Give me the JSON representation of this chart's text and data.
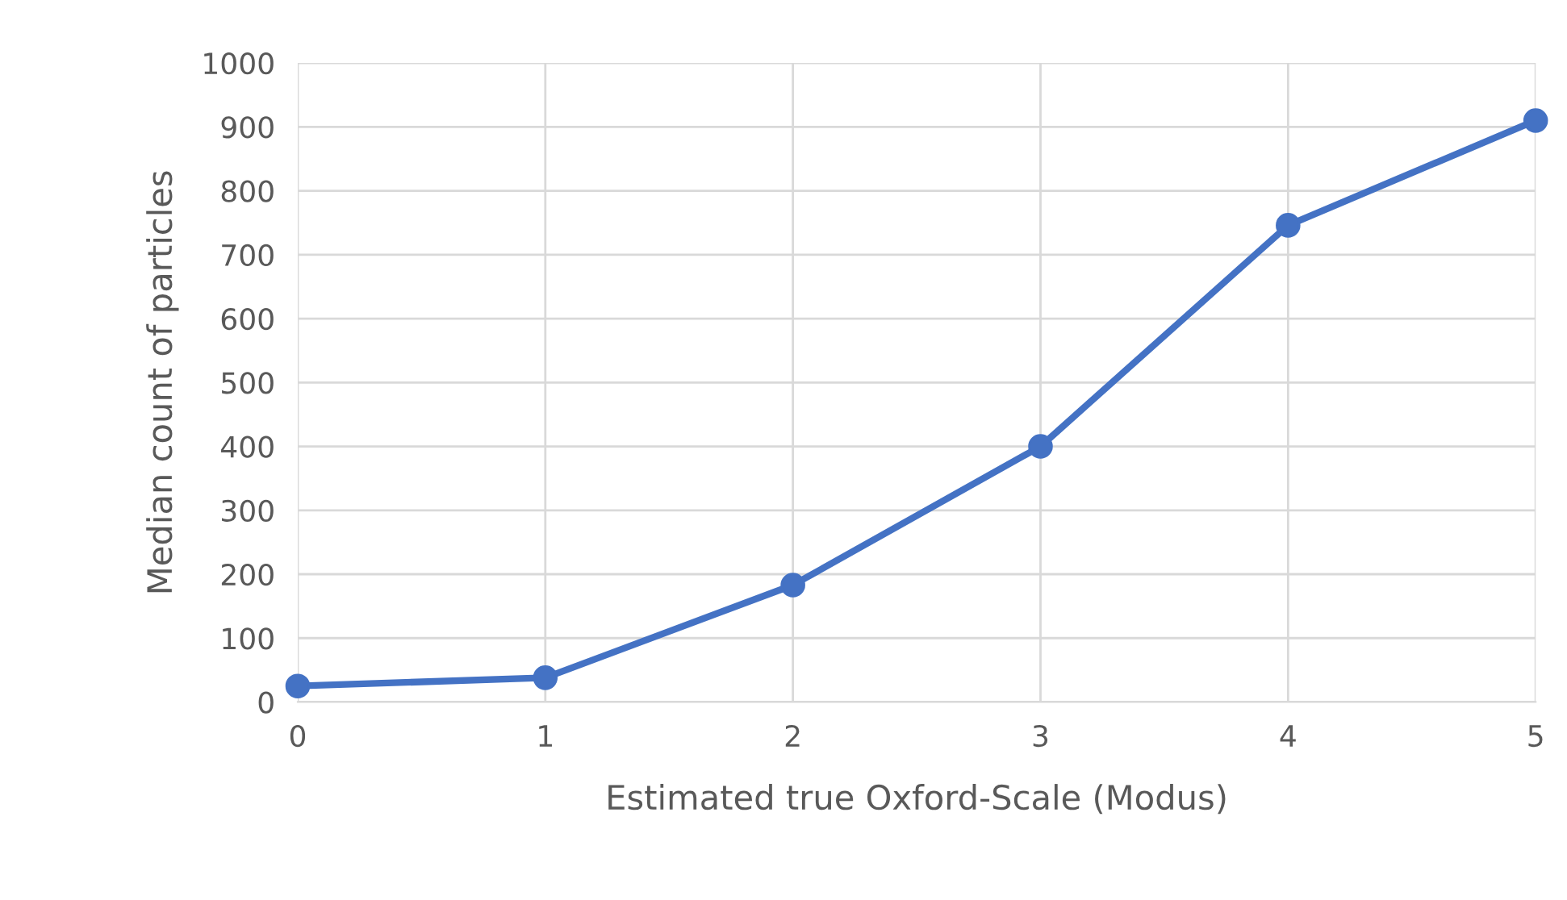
{
  "chart_data": {
    "type": "line",
    "xlabel": "Estimated true Oxford-Scale (Modus)",
    "ylabel": "Median count of particles",
    "x": [
      0,
      1,
      2,
      3,
      4,
      5
    ],
    "series": [
      {
        "color": "#4472c4",
        "values": [
          25,
          38,
          183,
          400,
          746,
          910
        ]
      }
    ],
    "xlim": [
      0,
      5
    ],
    "xticks": [
      0,
      1,
      2,
      3,
      4,
      5
    ],
    "ylim": [
      0,
      1000
    ],
    "yticks": [
      0,
      100,
      200,
      300,
      400,
      500,
      600,
      700,
      800,
      900,
      1000
    ],
    "grid": true,
    "marker": "circle",
    "line_style": "solid"
  }
}
